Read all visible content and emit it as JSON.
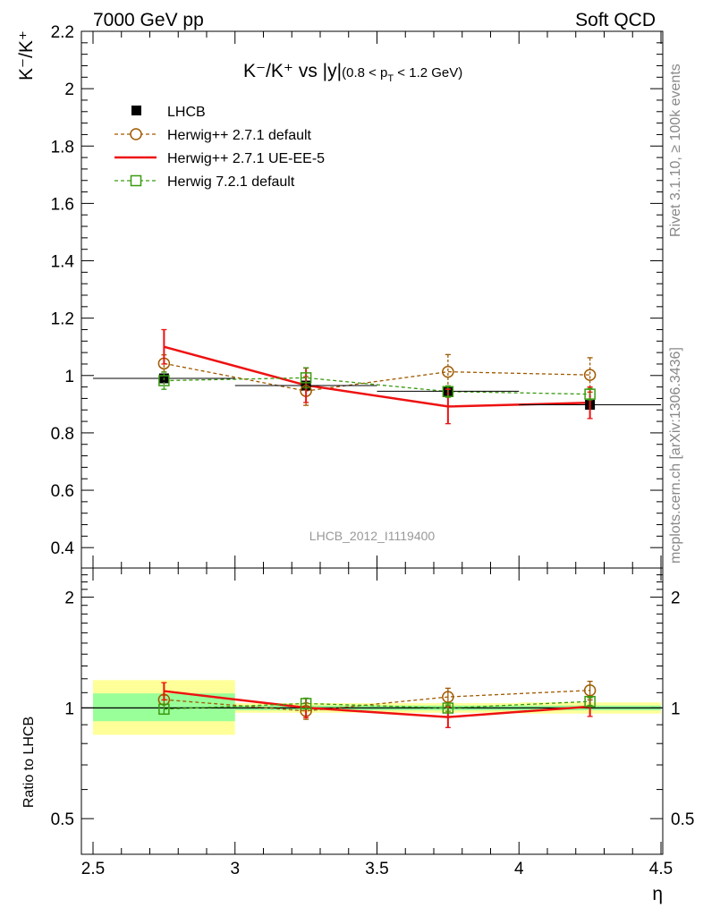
{
  "header": {
    "left": "7000 GeV pp",
    "right": "Soft QCD"
  },
  "title": {
    "main": "K⁻/K⁺ vs |y|",
    "sub": "(0.8 < p",
    "sub_sub": "T",
    "sub_end": " < 1.2 GeV)"
  },
  "side": {
    "rivet": "Rivet 3.1.10, ≥ 100k events",
    "mcplots": "mcplots.cern.ch [arXiv:1306.3436]"
  },
  "watermark": "LHCB_2012_I1119400",
  "colors": {
    "data": "#000000",
    "herwigpp_default": "#a05a00",
    "herwigpp_ueee5": "#ee1111",
    "herwig7": "#3a9a10",
    "band_inner": "#99ff99",
    "band_outer": "#ffff99"
  },
  "chart_data": [
    {
      "type": "line",
      "ylabel": "K⁻/K⁺",
      "xlabel": "η",
      "xlim": [
        2.5,
        4.5
      ],
      "ylim": [
        0.38,
        2.22
      ],
      "yticks": [
        "0.4",
        "0.6",
        "0.8",
        "1",
        "1.2",
        "1.4",
        "1.6",
        "1.8",
        "2",
        "2.2"
      ],
      "xticks": [
        "2.5",
        "3",
        "3.5",
        "4",
        "4.5"
      ],
      "legend_position": "top-left",
      "data": {
        "name": "LHCB",
        "x": [
          2.75,
          3.25,
          3.75,
          4.25
        ],
        "xerr": [
          0.25,
          0.25,
          0.25,
          0.25
        ],
        "y": [
          0.99,
          0.965,
          0.945,
          0.898
        ],
        "yerr": [
          0.014,
          0.013,
          0.013,
          0.013
        ]
      },
      "series": [
        {
          "name": "Herwig++ 2.7.1 default",
          "marker": "circle",
          "dashed": true,
          "x": [
            2.75,
            3.25,
            3.75,
            4.25
          ],
          "y": [
            1.042,
            0.946,
            1.013,
            1.002
          ],
          "err": [
            0.03,
            0.05,
            0.06,
            0.06
          ]
        },
        {
          "name": "Herwig++ 2.7.1 UE-EE-5",
          "marker": "none",
          "dashed": false,
          "x": [
            2.75,
            3.25,
            3.75,
            4.25
          ],
          "y": [
            1.1,
            0.966,
            0.892,
            0.905
          ],
          "err": [
            0.06,
            0.06,
            0.06,
            0.055
          ]
        },
        {
          "name": "Herwig 7.2.1 default",
          "marker": "square",
          "dashed": true,
          "x": [
            2.75,
            3.25,
            3.75,
            4.25
          ],
          "y": [
            0.982,
            0.992,
            0.944,
            0.935
          ],
          "err": [
            0.03,
            0.035,
            0.02,
            0.02
          ]
        }
      ]
    },
    {
      "type": "line",
      "ylabel": "Ratio to LHCB",
      "xlabel": "η",
      "xlim": [
        2.5,
        4.5
      ],
      "ylim": [
        0.4,
        2.4
      ],
      "yscale": "log",
      "yticks": [
        "0.5",
        "1",
        "2"
      ],
      "band_inner": [
        {
          "x0": 2.5,
          "x1": 3.0,
          "lo": 0.92,
          "hi": 1.095
        },
        {
          "x0": 3.0,
          "x1": 3.5,
          "lo": 0.985,
          "hi": 1.015
        },
        {
          "x0": 3.5,
          "x1": 4.0,
          "lo": 0.985,
          "hi": 1.015
        },
        {
          "x0": 4.0,
          "x1": 4.5,
          "lo": 0.985,
          "hi": 1.015
        }
      ],
      "band_outer": [
        {
          "x0": 2.5,
          "x1": 3.0,
          "lo": 0.845,
          "hi": 1.19
        },
        {
          "x0": 3.0,
          "x1": 3.5,
          "lo": 0.97,
          "hi": 1.03
        },
        {
          "x0": 3.5,
          "x1": 4.0,
          "lo": 0.97,
          "hi": 1.03
        },
        {
          "x0": 4.0,
          "x1": 4.5,
          "lo": 0.965,
          "hi": 1.035
        }
      ],
      "series": [
        {
          "name": "Herwig++ 2.7.1 default",
          "x": [
            2.75,
            3.25,
            3.75,
            4.25
          ],
          "y": [
            1.053,
            0.981,
            1.071,
            1.116
          ],
          "err": [
            0.03,
            0.05,
            0.06,
            0.065
          ]
        },
        {
          "name": "Herwig++ 2.7.1 UE-EE-5",
          "x": [
            2.75,
            3.25,
            3.75,
            4.25
          ],
          "y": [
            1.111,
            1.001,
            0.944,
            1.008
          ],
          "err": [
            0.06,
            0.06,
            0.06,
            0.06
          ]
        },
        {
          "name": "Herwig 7.2.1 default",
          "x": [
            2.75,
            3.25,
            3.75,
            4.25
          ],
          "y": [
            0.992,
            1.028,
            0.999,
            1.041
          ],
          "err": [
            0.03,
            0.035,
            0.02,
            0.025
          ]
        }
      ]
    }
  ]
}
